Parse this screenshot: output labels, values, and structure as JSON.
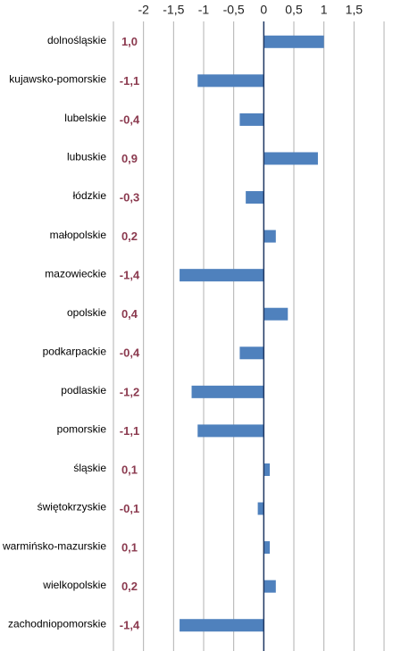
{
  "chart_data": {
    "type": "bar",
    "orientation": "horizontal",
    "categories": [
      "dolnośląskie",
      "kujawsko-pomorskie",
      "lubelskie",
      "lubuskie",
      "łódzkie",
      "małopolskie",
      "mazowieckie",
      "opolskie",
      "podkarpackie",
      "podlaskie",
      "pomorskie",
      "śląskie",
      "świętokrzyskie",
      "warmińsko-mazurskie",
      "wielkopolskie",
      "zachodniopomorskie"
    ],
    "values": [
      1.0,
      -1.1,
      -0.4,
      0.9,
      -0.3,
      0.2,
      -1.4,
      0.4,
      -0.4,
      -1.2,
      -1.1,
      0.1,
      -0.1,
      0.1,
      0.2,
      -1.4
    ],
    "value_labels": [
      "1,0",
      "-1,1",
      "-0,4",
      "0,9",
      "-0,3",
      "0,2",
      "-1,4",
      "0,4",
      "-0,4",
      "-1,2",
      "-1,1",
      "0,1",
      "-0,1",
      "0,1",
      "0,2",
      "-1,4"
    ],
    "color": "#4f81bd",
    "value_label_color": "#8b3a4f",
    "zero_line_color": "#1f3864",
    "xlim": [
      -2.5,
      2
    ],
    "xticks": [
      -2,
      {
        "value": -1.5,
        "label": "-1,5"
      },
      -1,
      {
        "value": -0.5,
        "label": "-0,5"
      },
      0,
      {
        "value": 0.5,
        "label": "0,5"
      },
      1,
      {
        "value": 1.5,
        "label": "1,5"
      }
    ],
    "grid": true
  }
}
